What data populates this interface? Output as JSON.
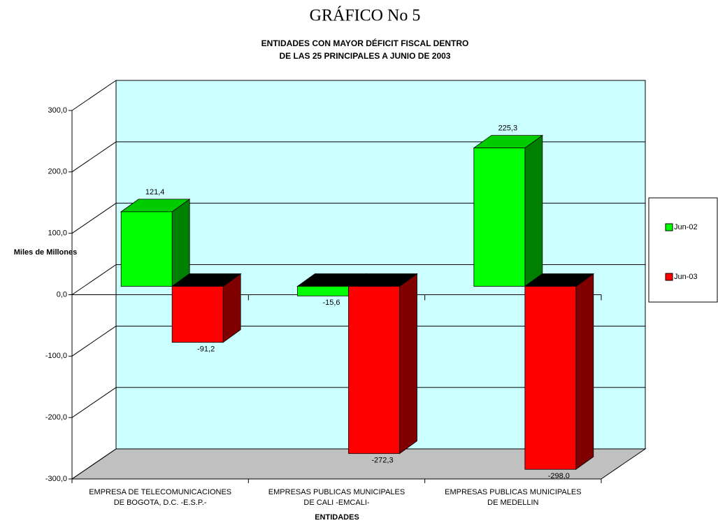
{
  "chart_data": {
    "type": "bar3d",
    "title": "GRÁFICO No 5",
    "subtitle": [
      "ENTIDADES CON MAYOR DÉFICIT FISCAL  DENTRO",
      "DE LAS 25 PRINCIPALES A JUNIO DE 2003"
    ],
    "y_label": "Miles de  Millones",
    "x_label": "ENTIDADES",
    "categories": [
      [
        "EMPRESA DE TELECOMUNICACIONES",
        "DE  BOGOTA, D.C. -E.S.P.-"
      ],
      [
        "EMPRESAS PUBLICAS MUNICIPALES",
        "DE CALI -EMCALI-"
      ],
      [
        "EMPRESAS PUBLICAS MUNICIPALES",
        "DE MEDELLIN"
      ]
    ],
    "series": [
      {
        "name": "Jun-02",
        "color": "#00ff00",
        "values": [
          121.4,
          -15.6,
          225.3
        ],
        "value_labels": [
          "121,4",
          "-15,6",
          "225,3"
        ]
      },
      {
        "name": "Jun-03",
        "color": "#ff0000",
        "values": [
          -91.2,
          -272.3,
          -298.0
        ],
        "value_labels": [
          "-91,2",
          "-272,3",
          "-298,0"
        ]
      }
    ],
    "ylim": [
      -300,
      300
    ],
    "yticks": [
      {
        "value": -300,
        "label": "-300,0"
      },
      {
        "value": -200,
        "label": "-200,0"
      },
      {
        "value": -100,
        "label": "-100,0"
      },
      {
        "value": 0,
        "label": "0,0"
      },
      {
        "value": 100,
        "label": "100,0"
      },
      {
        "value": 200,
        "label": "200,0"
      },
      {
        "value": 300,
        "label": "300,0"
      }
    ],
    "grid": true,
    "legend": "right"
  }
}
